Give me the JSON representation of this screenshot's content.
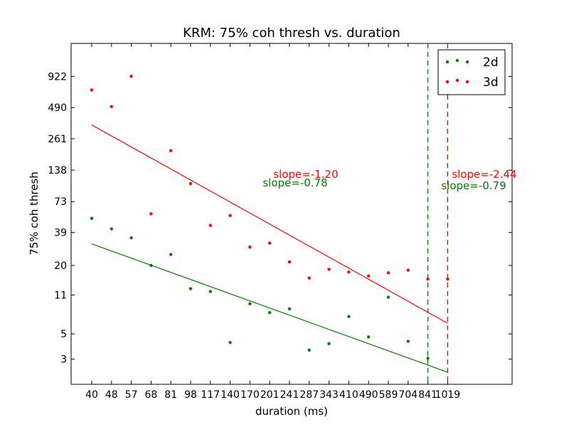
{
  "chart_data": {
    "type": "scatter",
    "title": "KRM: 75% coh thresh vs. duration",
    "xlabel": "duration (ms)",
    "ylabel": "75% coh thresh",
    "y_scale": "log",
    "x_ticks": [
      "40",
      "48",
      "57",
      "68",
      "81",
      "98",
      "117",
      "140",
      "170",
      "201",
      "241",
      "287",
      "343",
      "410",
      "490",
      "589",
      "704",
      "841",
      "1019"
    ],
    "y_ticks": [
      3,
      5,
      11,
      20,
      39,
      73,
      138,
      261,
      490,
      922
    ],
    "ylim": [
      1.8,
      1800
    ],
    "legend_position": "top-right",
    "series": [
      {
        "name": "2d",
        "color": "#008000",
        "points": [
          {
            "x": "40",
            "y": 52
          },
          {
            "x": "48",
            "y": 42
          },
          {
            "x": "57",
            "y": 35
          },
          {
            "x": "68",
            "y": 20
          },
          {
            "x": "81",
            "y": 25
          },
          {
            "x": "98",
            "y": 12.5
          },
          {
            "x": "117",
            "y": 11.8
          },
          {
            "x": "140",
            "y": 4.2
          },
          {
            "x": "170",
            "y": 9.2
          },
          {
            "x": "201",
            "y": 7.7
          },
          {
            "x": "241",
            "y": 8.3
          },
          {
            "x": "287",
            "y": 3.6
          },
          {
            "x": "343",
            "y": 4.1
          },
          {
            "x": "410",
            "y": 7.1
          },
          {
            "x": "490",
            "y": 4.7
          },
          {
            "x": "589",
            "y": 10.5
          },
          {
            "x": "704",
            "y": 4.3
          },
          {
            "x": "841",
            "y": 3.05
          }
        ],
        "fit_line": {
          "x": [
            "40",
            "1019"
          ],
          "y": [
            31,
            2.3
          ]
        },
        "vline_x": "841",
        "slope_label": "slope=-0.78",
        "extrap_slope_label": "slope=-0.79"
      },
      {
        "name": "3d",
        "color": "#ff0000",
        "points": [
          {
            "x": "40",
            "y": 700
          },
          {
            "x": "48",
            "y": 500
          },
          {
            "x": "57",
            "y": 925
          },
          {
            "x": "68",
            "y": 57
          },
          {
            "x": "81",
            "y": 205
          },
          {
            "x": "98",
            "y": 105
          },
          {
            "x": "117",
            "y": 45
          },
          {
            "x": "140",
            "y": 55
          },
          {
            "x": "170",
            "y": 29
          },
          {
            "x": "201",
            "y": 31.5
          },
          {
            "x": "241",
            "y": 21.5
          },
          {
            "x": "287",
            "y": 15.5
          },
          {
            "x": "343",
            "y": 18.5
          },
          {
            "x": "410",
            "y": 17.5
          },
          {
            "x": "490",
            "y": 16.2
          },
          {
            "x": "589",
            "y": 17.2
          },
          {
            "x": "704",
            "y": 18.2
          },
          {
            "x": "841",
            "y": 15.2
          },
          {
            "x": "1019",
            "y": 15.2
          }
        ],
        "fit_line": {
          "x": [
            "40",
            "1019"
          ],
          "y": [
            345,
            6.2
          ]
        },
        "vline_x": "1019",
        "slope_label": "slope=-1.20",
        "extrap_slope_label": "slope=-2.44"
      }
    ]
  }
}
